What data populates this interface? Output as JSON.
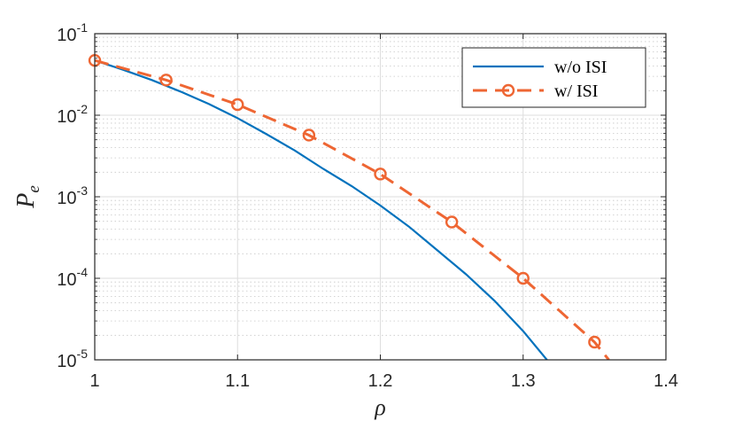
{
  "chart_data": {
    "type": "line",
    "xlabel": "ρ",
    "ylabel": {
      "main": "P",
      "sub": "e"
    },
    "xlim": [
      1,
      1.4
    ],
    "ylim": [
      1e-05,
      0.1
    ],
    "yscale": "log",
    "grid": "major and minor (y)",
    "legend_position": "top-right",
    "x_ticks": [
      1,
      1.1,
      1.2,
      1.3,
      1.4
    ],
    "x_tick_labels": [
      "1",
      "1.1",
      "1.2",
      "1.3",
      "1.4"
    ],
    "y_ticks": [
      {
        "base": "10",
        "exp": "-1",
        "value": 0.1
      },
      {
        "base": "10",
        "exp": "-2",
        "value": 0.01
      },
      {
        "base": "10",
        "exp": "-3",
        "value": 0.001
      },
      {
        "base": "10",
        "exp": "-4",
        "value": 0.0001
      },
      {
        "base": "10",
        "exp": "-5",
        "value": 1e-05
      }
    ],
    "series": [
      {
        "name": "w/o ISI",
        "color": "#0072BD",
        "style": "solid",
        "marker": "none",
        "x": [
          1.0,
          1.02,
          1.04,
          1.06,
          1.08,
          1.1,
          1.12,
          1.14,
          1.16,
          1.18,
          1.2,
          1.22,
          1.24,
          1.26,
          1.28,
          1.3,
          1.32,
          1.335
        ],
        "y": [
          0.047,
          0.036,
          0.027,
          0.0195,
          0.0137,
          0.0092,
          0.0059,
          0.0037,
          0.0022,
          0.00135,
          0.00078,
          0.00043,
          0.00022,
          0.000112,
          5.3e-05,
          2.25e-05,
          8.5e-06,
          4.05e-06
        ]
      },
      {
        "name": "w/ ISI",
        "color": "#EE6633",
        "style": "dashed",
        "marker": "circle",
        "x": [
          1.0,
          1.05,
          1.1,
          1.15,
          1.2,
          1.25,
          1.3,
          1.35,
          1.36
        ],
        "y": [
          0.047,
          0.027,
          0.0135,
          0.0057,
          0.0019,
          0.00049,
          0.0001,
          1.65e-05,
          1e-05
        ],
        "marker_x": [
          1.0,
          1.05,
          1.1,
          1.15,
          1.2,
          1.25,
          1.3,
          1.35
        ]
      }
    ]
  }
}
